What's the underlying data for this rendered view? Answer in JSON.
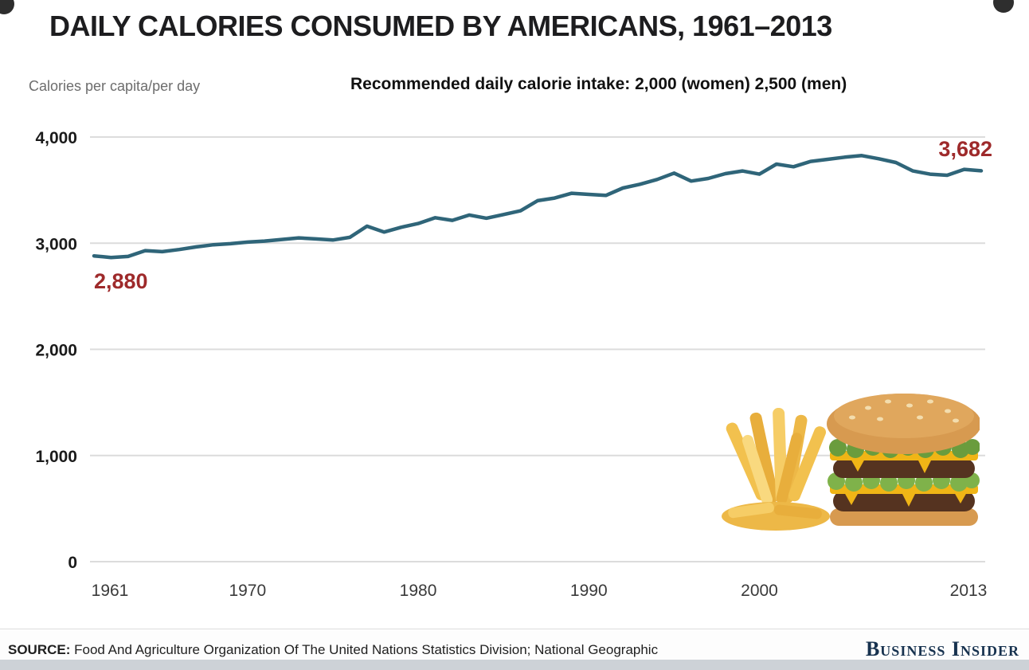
{
  "title": "DAILY CALORIES CONSUMED BY AMERICANS, 1961–2013",
  "axis_unit_label": "Calories per capita/per day",
  "recommendation": "Recommended daily calorie intake: 2,000 (women) 2,500 (men)",
  "footer": {
    "source_label": "SOURCE:",
    "source_text": " Food And Agriculture Organization Of The United Nations Statistics Division; National Geographic",
    "brand": "Business Insider"
  },
  "colors": {
    "line": "#2f6579",
    "annotation": "#9e2a2b",
    "grid": "#dcdcdc",
    "title": "#1d1d1f"
  },
  "chart_data": {
    "type": "line",
    "title": "DAILY CALORIES CONSUMED BY AMERICANS, 1961–2013",
    "ylabel": "Calories per capita/per day",
    "series_name": "Daily calories consumed per capita",
    "x_start": 1961,
    "x_end": 2013,
    "x": [
      1961,
      1962,
      1963,
      1964,
      1965,
      1966,
      1967,
      1968,
      1969,
      1970,
      1971,
      1972,
      1973,
      1974,
      1975,
      1976,
      1977,
      1978,
      1979,
      1980,
      1981,
      1982,
      1983,
      1984,
      1985,
      1986,
      1987,
      1988,
      1989,
      1990,
      1991,
      1992,
      1993,
      1994,
      1995,
      1996,
      1997,
      1998,
      1999,
      2000,
      2001,
      2002,
      2003,
      2004,
      2005,
      2006,
      2007,
      2008,
      2009,
      2010,
      2011,
      2012,
      2013
    ],
    "values": [
      2880,
      2865,
      2875,
      2930,
      2920,
      2940,
      2965,
      2985,
      2995,
      3010,
      3020,
      3035,
      3050,
      3040,
      3030,
      3055,
      3160,
      3105,
      3150,
      3185,
      3240,
      3215,
      3265,
      3235,
      3270,
      3305,
      3400,
      3425,
      3470,
      3460,
      3450,
      3520,
      3555,
      3600,
      3660,
      3585,
      3610,
      3655,
      3680,
      3650,
      3745,
      3720,
      3770,
      3790,
      3810,
      3825,
      3795,
      3760,
      3680,
      3650,
      3640,
      3695,
      3682
    ],
    "ylim": [
      0,
      4000
    ],
    "y_ticks": [
      4000,
      3000,
      2000,
      1000,
      0
    ],
    "y_tick_labels": [
      "4,000",
      "3,000",
      "2,000",
      "1,000",
      "0"
    ],
    "x_tick_years": [
      1961,
      1970,
      1980,
      1990,
      2000,
      2013
    ],
    "x_tick_labels": [
      "1961",
      "1970",
      "1980",
      "1990",
      "2000",
      "2013"
    ],
    "start_label": "2,880",
    "end_label": "3,682",
    "grid": true,
    "legend": false
  }
}
